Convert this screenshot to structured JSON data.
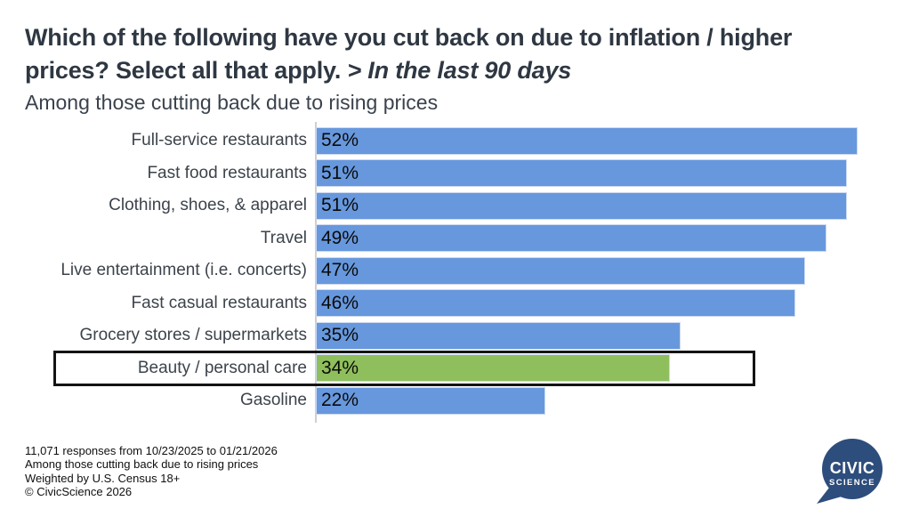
{
  "header": {
    "title_line1": "Which of the following have you cut back on due to inflation / higher",
    "title_line2_bold": "prices? Select all that apply. ",
    "title_line2_italic": "> In the last 90 days",
    "subtitle": "Among those cutting back due to rising prices"
  },
  "chart_data": {
    "type": "bar",
    "orientation": "horizontal",
    "title": "Which of the following have you cut back on due to inflation / higher prices? Select all that apply. > In the last 90 days",
    "subtitle": "Among those cutting back due to rising prices",
    "xlabel": "",
    "ylabel": "",
    "xmax": 52,
    "grid": false,
    "legend": false,
    "categories": [
      "Full-service restaurants",
      "Fast food restaurants",
      "Clothing, shoes, & apparel",
      "Travel",
      "Live entertainment (i.e. concerts)",
      "Fast casual restaurants",
      "Grocery stores / supermarkets",
      "Beauty / personal care",
      "Gasoline"
    ],
    "values": [
      52,
      51,
      51,
      49,
      47,
      46,
      35,
      34,
      22
    ],
    "value_labels": [
      "52%",
      "51%",
      "51%",
      "49%",
      "47%",
      "46%",
      "35%",
      "34%",
      "22%"
    ],
    "bar_color": "#6798DD",
    "highlight": {
      "index": 7,
      "category": "Beauty / personal care",
      "color": "#8FBF5C",
      "outlined": true,
      "outline_color": "#141414"
    }
  },
  "footer": {
    "lines": [
      "11,071 responses from 10/23/2025 to 01/21/2026",
      "Among those cutting back due to rising prices",
      "Weighted by U.S. Census 18+",
      "© CivicScience 2026"
    ]
  },
  "logo": {
    "line1": "CIVIC",
    "line2": "SCIENCE",
    "color": "#2D4D7C",
    "text_color": "#ffffff"
  }
}
